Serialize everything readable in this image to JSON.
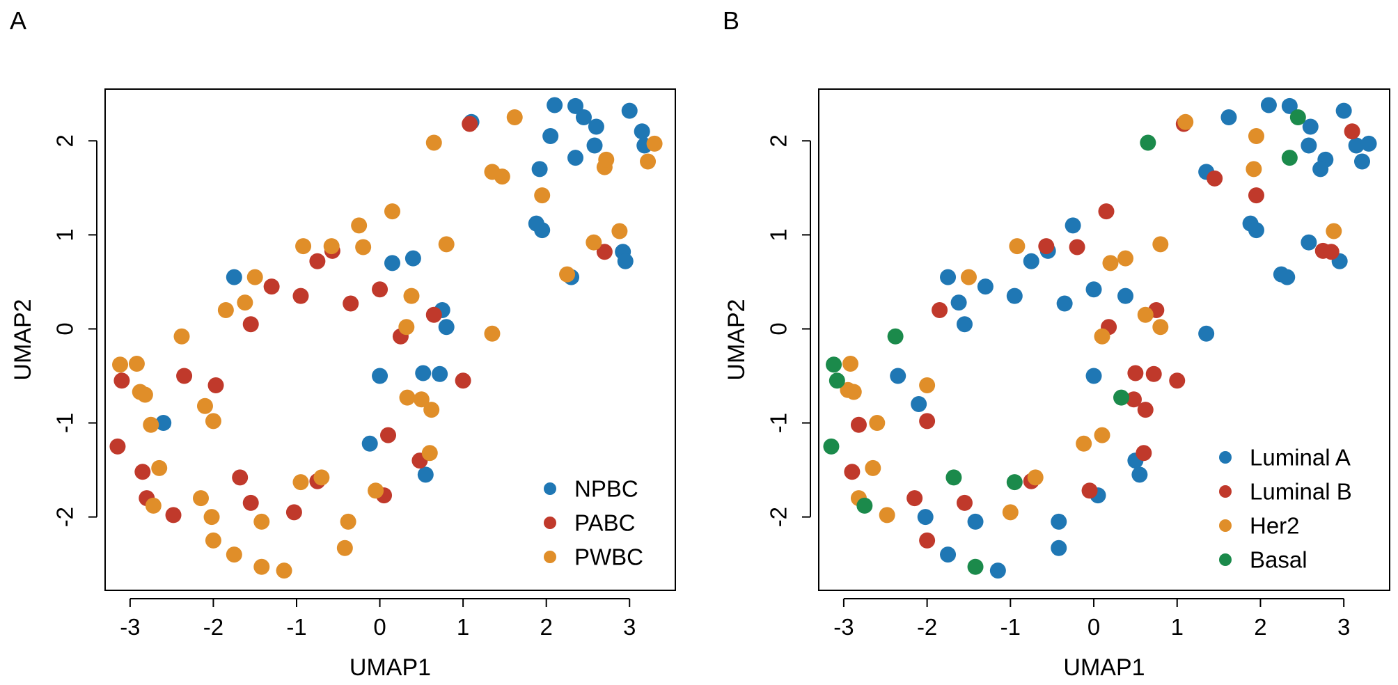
{
  "colors": {
    "blue": "#1f77b4",
    "red": "#c0392b",
    "orange": "#e08e29",
    "green": "#1b8a4b"
  },
  "chart_data": [
    {
      "panel": "A",
      "type": "scatter",
      "xlabel": "UMAP1",
      "ylabel": "UMAP2",
      "xlim": [
        -3.3,
        3.55
      ],
      "ylim": [
        -2.78,
        2.55
      ],
      "xticks": [
        -3,
        -2,
        -1,
        0,
        1,
        2,
        3
      ],
      "yticks": [
        -2,
        -1,
        0,
        1,
        2
      ],
      "legend_position": "bottom-right",
      "series": [
        {
          "name": "NPBC",
          "color": "#1f77b4",
          "points": [
            [
              1.1,
              2.2
            ],
            [
              2.1,
              2.38
            ],
            [
              2.35,
              2.37
            ],
            [
              2.45,
              2.25
            ],
            [
              2.6,
              2.15
            ],
            [
              3.0,
              2.32
            ],
            [
              3.15,
              2.1
            ],
            [
              3.18,
              1.95
            ],
            [
              2.05,
              2.05
            ],
            [
              2.58,
              1.95
            ],
            [
              2.35,
              1.82
            ],
            [
              1.92,
              1.7
            ],
            [
              1.88,
              1.12
            ],
            [
              1.95,
              1.05
            ],
            [
              2.92,
              0.82
            ],
            [
              2.95,
              0.72
            ],
            [
              2.3,
              0.55
            ],
            [
              -1.75,
              0.55
            ],
            [
              0.15,
              0.7
            ],
            [
              0.4,
              0.75
            ],
            [
              0.75,
              0.2
            ],
            [
              0.8,
              0.02
            ],
            [
              0.0,
              -0.5
            ],
            [
              0.52,
              -0.47
            ],
            [
              0.72,
              -0.48
            ],
            [
              -0.12,
              -1.22
            ],
            [
              0.55,
              -1.55
            ],
            [
              -2.6,
              -1.0
            ]
          ]
        },
        {
          "name": "PABC",
          "color": "#c0392b",
          "points": [
            [
              1.08,
              2.18
            ],
            [
              2.7,
              0.82
            ],
            [
              -0.75,
              0.72
            ],
            [
              -0.57,
              0.83
            ],
            [
              -1.3,
              0.45
            ],
            [
              -0.95,
              0.35
            ],
            [
              -0.35,
              0.27
            ],
            [
              0.0,
              0.42
            ],
            [
              0.65,
              0.15
            ],
            [
              -1.55,
              0.05
            ],
            [
              0.25,
              -0.08
            ],
            [
              -3.1,
              -0.55
            ],
            [
              -2.35,
              -0.5
            ],
            [
              -1.97,
              -0.6
            ],
            [
              1.0,
              -0.55
            ],
            [
              0.1,
              -1.13
            ],
            [
              -3.15,
              -1.25
            ],
            [
              -2.85,
              -1.52
            ],
            [
              0.48,
              -1.4
            ],
            [
              -2.8,
              -1.8
            ],
            [
              -1.68,
              -1.58
            ],
            [
              -0.75,
              -1.62
            ],
            [
              -2.48,
              -1.98
            ],
            [
              -1.55,
              -1.85
            ],
            [
              -1.03,
              -1.95
            ],
            [
              0.05,
              -1.77
            ]
          ]
        },
        {
          "name": "PWBC",
          "color": "#e08e29",
          "points": [
            [
              1.62,
              2.25
            ],
            [
              0.65,
              1.98
            ],
            [
              1.35,
              1.67
            ],
            [
              1.47,
              1.62
            ],
            [
              2.7,
              1.72
            ],
            [
              2.72,
              1.8
            ],
            [
              3.22,
              1.78
            ],
            [
              3.3,
              1.97
            ],
            [
              1.95,
              1.42
            ],
            [
              0.15,
              1.25
            ],
            [
              -0.25,
              1.1
            ],
            [
              -0.92,
              0.88
            ],
            [
              -0.58,
              0.88
            ],
            [
              -0.2,
              0.87
            ],
            [
              0.8,
              0.9
            ],
            [
              2.57,
              0.92
            ],
            [
              2.88,
              1.04
            ],
            [
              2.25,
              0.58
            ],
            [
              -1.5,
              0.55
            ],
            [
              -1.62,
              0.28
            ],
            [
              0.38,
              0.35
            ],
            [
              -1.85,
              0.2
            ],
            [
              0.32,
              0.02
            ],
            [
              1.35,
              -0.05
            ],
            [
              -2.38,
              -0.08
            ],
            [
              -3.12,
              -0.38
            ],
            [
              -2.92,
              -0.37
            ],
            [
              -2.88,
              -0.67
            ],
            [
              -2.82,
              -0.7
            ],
            [
              0.33,
              -0.73
            ],
            [
              0.5,
              -0.75
            ],
            [
              0.62,
              -0.86
            ],
            [
              -2.1,
              -0.82
            ],
            [
              -2.0,
              -0.98
            ],
            [
              -2.75,
              -1.02
            ],
            [
              0.6,
              -1.32
            ],
            [
              -2.65,
              -1.48
            ],
            [
              -2.72,
              -1.88
            ],
            [
              -2.15,
              -1.8
            ],
            [
              -0.7,
              -1.58
            ],
            [
              -0.95,
              -1.63
            ],
            [
              -0.05,
              -1.72
            ],
            [
              -2.02,
              -2.0
            ],
            [
              -1.42,
              -2.05
            ],
            [
              -0.38,
              -2.05
            ],
            [
              -2.0,
              -2.25
            ],
            [
              -1.75,
              -2.4
            ],
            [
              -0.42,
              -2.33
            ],
            [
              -1.42,
              -2.53
            ],
            [
              -1.15,
              -2.57
            ]
          ]
        }
      ]
    },
    {
      "panel": "B",
      "type": "scatter",
      "xlabel": "UMAP1",
      "ylabel": "UMAP2",
      "xlim": [
        -3.3,
        3.55
      ],
      "ylim": [
        -2.78,
        2.55
      ],
      "xticks": [
        -3,
        -2,
        -1,
        0,
        1,
        2,
        3
      ],
      "yticks": [
        -2,
        -1,
        0,
        1,
        2
      ],
      "legend_position": "bottom-right",
      "series": [
        {
          "name": "Luminal A",
          "color": "#1f77b4",
          "points": [
            [
              1.62,
              2.25
            ],
            [
              2.1,
              2.38
            ],
            [
              2.35,
              2.37
            ],
            [
              2.6,
              2.15
            ],
            [
              3.0,
              2.32
            ],
            [
              3.15,
              1.95
            ],
            [
              3.3,
              1.97
            ],
            [
              3.22,
              1.78
            ],
            [
              2.58,
              1.95
            ],
            [
              2.78,
              1.8
            ],
            [
              2.72,
              1.7
            ],
            [
              1.35,
              1.67
            ],
            [
              1.88,
              1.12
            ],
            [
              1.95,
              1.05
            ],
            [
              2.58,
              0.92
            ],
            [
              2.95,
              0.72
            ],
            [
              2.25,
              0.58
            ],
            [
              2.32,
              0.55
            ],
            [
              -0.25,
              1.1
            ],
            [
              -0.55,
              0.83
            ],
            [
              -0.75,
              0.72
            ],
            [
              -1.75,
              0.55
            ],
            [
              -1.3,
              0.45
            ],
            [
              -1.62,
              0.28
            ],
            [
              -0.95,
              0.35
            ],
            [
              -0.35,
              0.27
            ],
            [
              0.0,
              0.42
            ],
            [
              0.38,
              0.35
            ],
            [
              -1.55,
              0.05
            ],
            [
              1.35,
              -0.05
            ],
            [
              -2.35,
              -0.5
            ],
            [
              -2.1,
              -0.8
            ],
            [
              0.0,
              -0.5
            ],
            [
              0.5,
              -1.4
            ],
            [
              0.55,
              -1.55
            ],
            [
              0.05,
              -1.77
            ],
            [
              -2.02,
              -2.0
            ],
            [
              -1.42,
              -2.05
            ],
            [
              -0.42,
              -2.05
            ],
            [
              -0.42,
              -2.33
            ],
            [
              -1.75,
              -2.4
            ],
            [
              -1.15,
              -2.57
            ]
          ]
        },
        {
          "name": "Luminal B",
          "color": "#c0392b",
          "points": [
            [
              1.08,
              2.18
            ],
            [
              3.1,
              2.1
            ],
            [
              1.45,
              1.6
            ],
            [
              1.95,
              1.42
            ],
            [
              2.75,
              0.83
            ],
            [
              2.85,
              0.82
            ],
            [
              0.15,
              1.25
            ],
            [
              -0.2,
              0.87
            ],
            [
              -0.57,
              0.88
            ],
            [
              0.75,
              0.2
            ],
            [
              -1.85,
              0.2
            ],
            [
              0.18,
              0.02
            ],
            [
              0.5,
              -0.47
            ],
            [
              0.72,
              -0.48
            ],
            [
              1.0,
              -0.55
            ],
            [
              0.48,
              -0.75
            ],
            [
              0.62,
              -0.86
            ],
            [
              -2.0,
              -0.98
            ],
            [
              -2.82,
              -1.02
            ],
            [
              0.6,
              -1.32
            ],
            [
              -2.9,
              -1.52
            ],
            [
              -2.15,
              -1.8
            ],
            [
              -1.55,
              -1.85
            ],
            [
              -0.75,
              -1.62
            ],
            [
              -0.05,
              -1.72
            ],
            [
              -2.0,
              -2.25
            ]
          ]
        },
        {
          "name": "Her2",
          "color": "#e08e29",
          "points": [
            [
              1.1,
              2.2
            ],
            [
              1.95,
              2.05
            ],
            [
              1.92,
              1.7
            ],
            [
              2.88,
              1.04
            ],
            [
              -0.92,
              0.88
            ],
            [
              0.8,
              0.9
            ],
            [
              0.38,
              0.75
            ],
            [
              0.2,
              0.7
            ],
            [
              -1.5,
              0.55
            ],
            [
              0.62,
              0.15
            ],
            [
              0.8,
              0.02
            ],
            [
              0.1,
              -0.08
            ],
            [
              -2.92,
              -0.37
            ],
            [
              -2.88,
              -0.67
            ],
            [
              -2.95,
              -0.65
            ],
            [
              -2.0,
              -0.6
            ],
            [
              -2.6,
              -1.0
            ],
            [
              0.1,
              -1.13
            ],
            [
              -0.12,
              -1.22
            ],
            [
              -2.65,
              -1.48
            ],
            [
              -0.7,
              -1.58
            ],
            [
              -2.82,
              -1.8
            ],
            [
              -1.0,
              -1.95
            ],
            [
              -2.48,
              -1.98
            ]
          ]
        },
        {
          "name": "Basal",
          "color": "#1b8a4b",
          "points": [
            [
              2.45,
              2.25
            ],
            [
              0.65,
              1.98
            ],
            [
              2.35,
              1.82
            ],
            [
              -2.38,
              -0.08
            ],
            [
              -3.12,
              -0.38
            ],
            [
              -3.08,
              -0.55
            ],
            [
              0.33,
              -0.73
            ],
            [
              -3.15,
              -1.25
            ],
            [
              -1.68,
              -1.58
            ],
            [
              -0.95,
              -1.63
            ],
            [
              -2.75,
              -1.88
            ],
            [
              -1.42,
              -2.53
            ]
          ]
        }
      ]
    }
  ]
}
